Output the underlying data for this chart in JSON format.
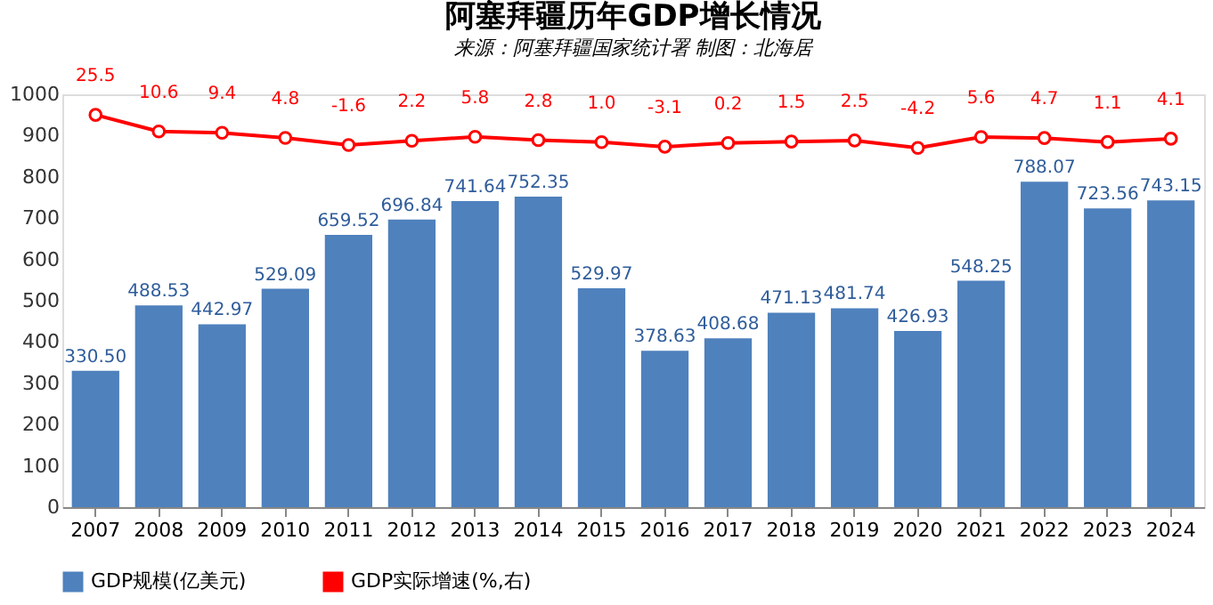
{
  "chart_data": {
    "type": "bar",
    "title": "阿塞拜疆历年GDP增长情况",
    "subtitle": "来源：阿塞拜疆国家统计署  制图：北海居",
    "categories": [
      "2007",
      "2008",
      "2009",
      "2010",
      "2011",
      "2012",
      "2013",
      "2014",
      "2015",
      "2016",
      "2017",
      "2018",
      "2019",
      "2020",
      "2021",
      "2022",
      "2023",
      "2024"
    ],
    "series": [
      {
        "name": "GDP规模(亿美元)",
        "color": "#4f81bd",
        "values": [
          330.5,
          488.53,
          442.97,
          529.09,
          659.52,
          696.84,
          741.64,
          752.35,
          529.97,
          378.63,
          408.68,
          471.13,
          481.74,
          426.93,
          548.25,
          788.07,
          723.56,
          743.15
        ],
        "value_labels": [
          "330.50",
          "488.53",
          "442.97",
          "529.09",
          "659.52",
          "696.84",
          "741.64",
          "752.35",
          "529.97",
          "378.63",
          "408.68",
          "471.13",
          "481.74",
          "426.93",
          "548.25",
          "788.07",
          "723.56",
          "743.15"
        ]
      },
      {
        "name": "GDP实际增速(%,右)",
        "type": "line",
        "axis": "y2",
        "color": "#ff0000",
        "marker": "circle",
        "values": [
          25.5,
          10.6,
          9.4,
          4.8,
          -1.6,
          2.2,
          5.8,
          2.8,
          1.0,
          -3.1,
          0.2,
          1.5,
          2.5,
          -4.2,
          5.6,
          4.7,
          1.1,
          4.1
        ],
        "value_labels": [
          "25.5",
          "10.6",
          "9.4",
          "4.8",
          "-1.6",
          "2.2",
          "5.8",
          "2.8",
          "1.0",
          "-3.1",
          "0.2",
          "1.5",
          "2.5",
          "-4.2",
          "5.6",
          "4.7",
          "1.1",
          "4.1"
        ]
      }
    ],
    "ylim": [
      0,
      1000
    ],
    "yticks": [
      0,
      100,
      200,
      300,
      400,
      500,
      600,
      700,
      800,
      900,
      1000
    ],
    "y2lim": [
      -327,
      44
    ],
    "legend": "bottom",
    "grid": false
  }
}
